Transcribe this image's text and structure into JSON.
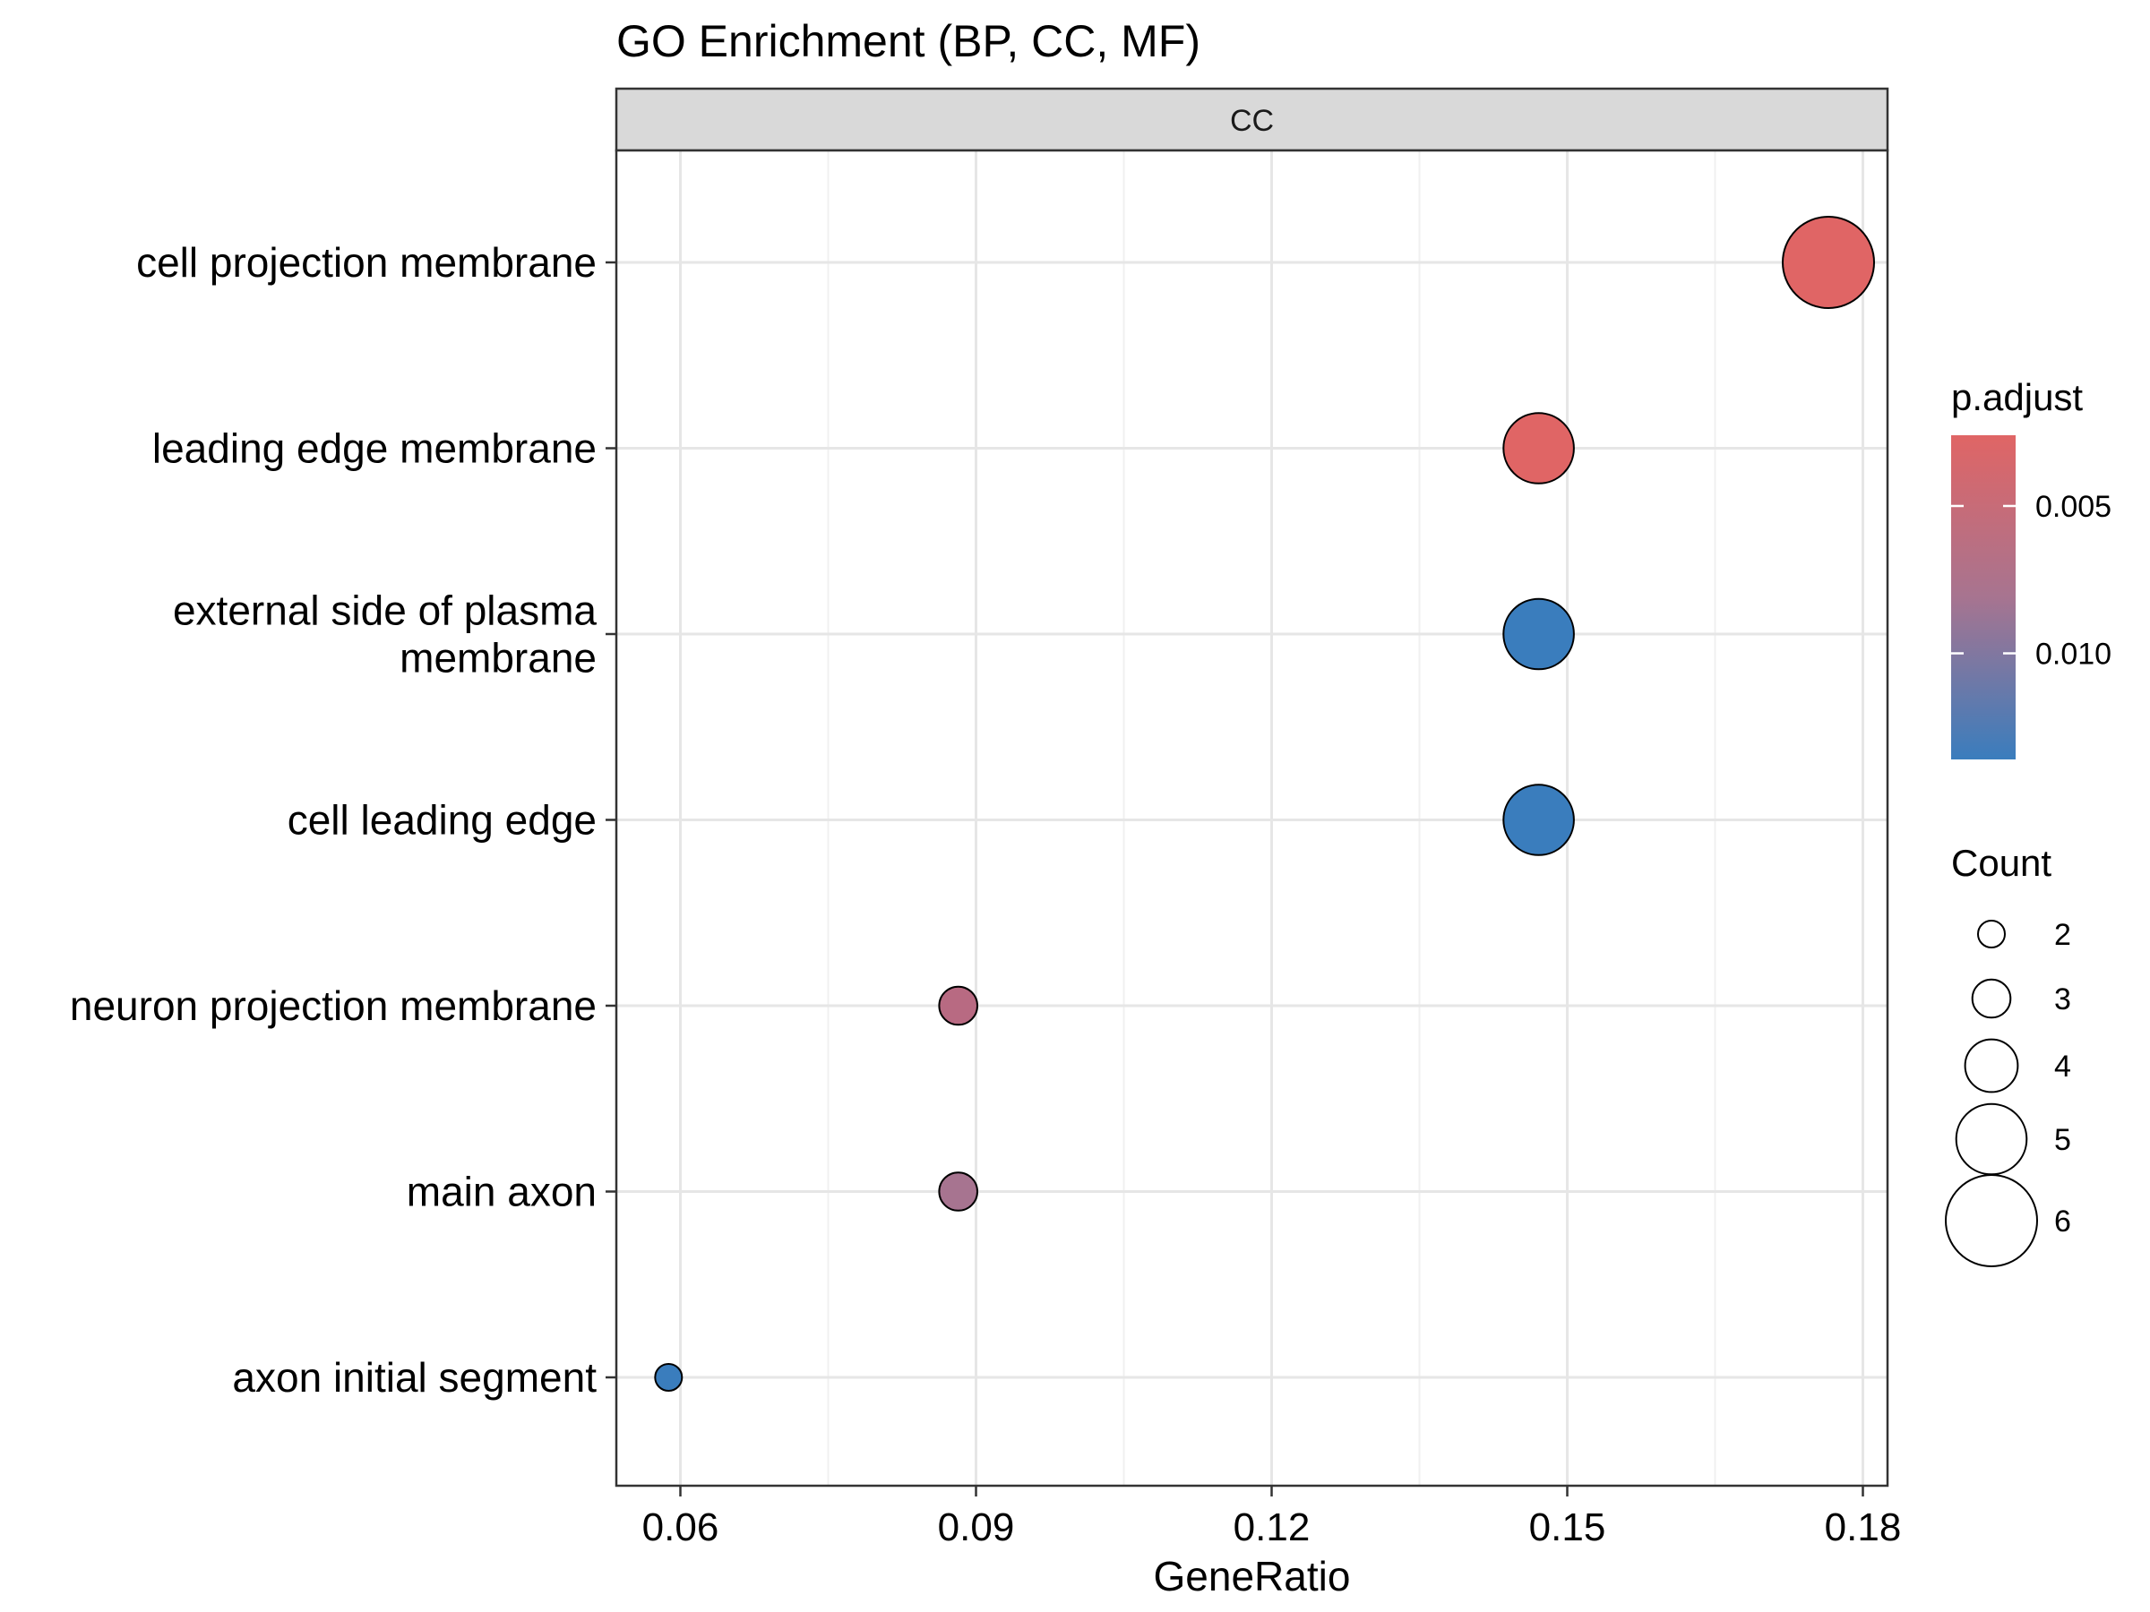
{
  "chart_data": {
    "type": "scatter",
    "title": "GO Enrichment (BP, CC, MF)",
    "facet": "CC",
    "xlabel": "GeneRatio",
    "ylabel": "",
    "xlim": [
      0.0535,
      0.1825
    ],
    "xticks": [
      0.06,
      0.09,
      0.12,
      0.15,
      0.18
    ],
    "xtick_labels": [
      "0.06",
      "0.09",
      "0.12",
      "0.15",
      "0.18"
    ],
    "grid": true,
    "points": [
      {
        "term": "cell projection membrane",
        "term_lines": [
          "cell projection membrane"
        ],
        "gene_ratio": 0.1765,
        "count": 6,
        "p_adjust": 0.0026,
        "color": "#E06565"
      },
      {
        "term": "leading edge membrane",
        "term_lines": [
          "leading edge membrane"
        ],
        "gene_ratio": 0.1471,
        "count": 5,
        "p_adjust": 0.0026,
        "color": "#E06565"
      },
      {
        "term": "external side of plasma membrane",
        "term_lines": [
          "external side of plasma",
          "membrane"
        ],
        "gene_ratio": 0.1471,
        "count": 5,
        "p_adjust": 0.0136,
        "color": "#3A7DBD"
      },
      {
        "term": "cell leading edge",
        "term_lines": [
          "cell leading edge"
        ],
        "gene_ratio": 0.1471,
        "count": 5,
        "p_adjust": 0.0136,
        "color": "#3A7DBD"
      },
      {
        "term": "neuron projection membrane",
        "term_lines": [
          "neuron projection membrane"
        ],
        "gene_ratio": 0.0882,
        "count": 3,
        "p_adjust": 0.006,
        "color": "#B86A82"
      },
      {
        "term": "main axon",
        "term_lines": [
          "main axon"
        ],
        "gene_ratio": 0.0882,
        "count": 3,
        "p_adjust": 0.0075,
        "color": "#A77490"
      },
      {
        "term": "axon initial segment",
        "term_lines": [
          "axon initial segment"
        ],
        "gene_ratio": 0.0588,
        "count": 2,
        "p_adjust": 0.0136,
        "color": "#3A7DBD"
      }
    ],
    "legend": {
      "color": {
        "title": "p.adjust",
        "low_color": "#E06565",
        "high_color": "#3A7DBD",
        "range": [
          0.0026,
          0.0136
        ],
        "breaks": [
          0.005,
          0.01
        ],
        "break_labels": [
          "0.005",
          "0.010"
        ]
      },
      "size": {
        "title": "Count",
        "values": [
          2,
          3,
          4,
          5,
          6
        ],
        "labels": [
          "2",
          "3",
          "4",
          "5",
          "6"
        ]
      },
      "placement": "right"
    }
  }
}
